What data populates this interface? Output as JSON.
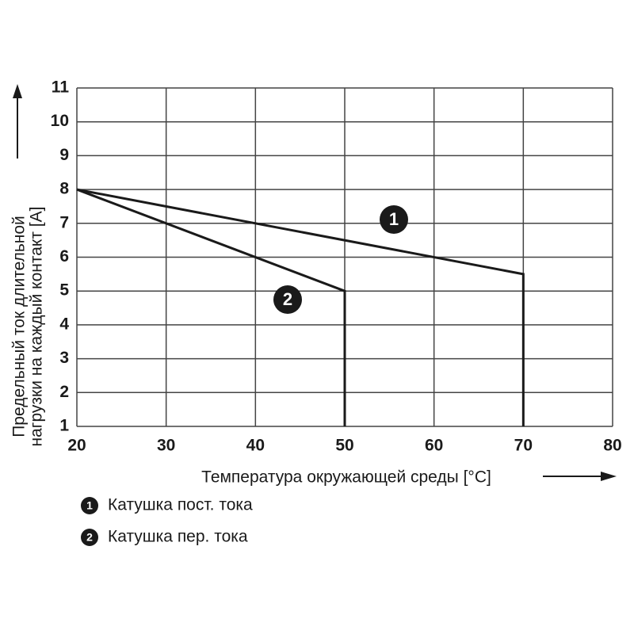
{
  "chart_data": {
    "type": "line",
    "xlabel": "Температура окружающей среды [°C]",
    "ylabel_lines": [
      "Предельный ток длительной",
      "нагрузки на каждый контакт [A]"
    ],
    "xlim": [
      20,
      80
    ],
    "xticks": [
      20,
      30,
      40,
      50,
      60,
      70,
      80
    ],
    "ylim": [
      1,
      11
    ],
    "yticks": [
      1,
      2,
      3,
      4,
      5,
      6,
      7,
      8,
      9,
      10,
      11
    ],
    "grid": true,
    "series": [
      {
        "name": "Катушка пост. тока",
        "label": "1",
        "color": "#1a1a1a",
        "x": [
          20,
          70,
          70
        ],
        "values": [
          8,
          5.5,
          1
        ]
      },
      {
        "name": "Катушка пер. тока",
        "label": "2",
        "color": "#1a1a1a",
        "x": [
          20,
          50,
          50
        ],
        "values": [
          8,
          5,
          1
        ]
      }
    ]
  }
}
